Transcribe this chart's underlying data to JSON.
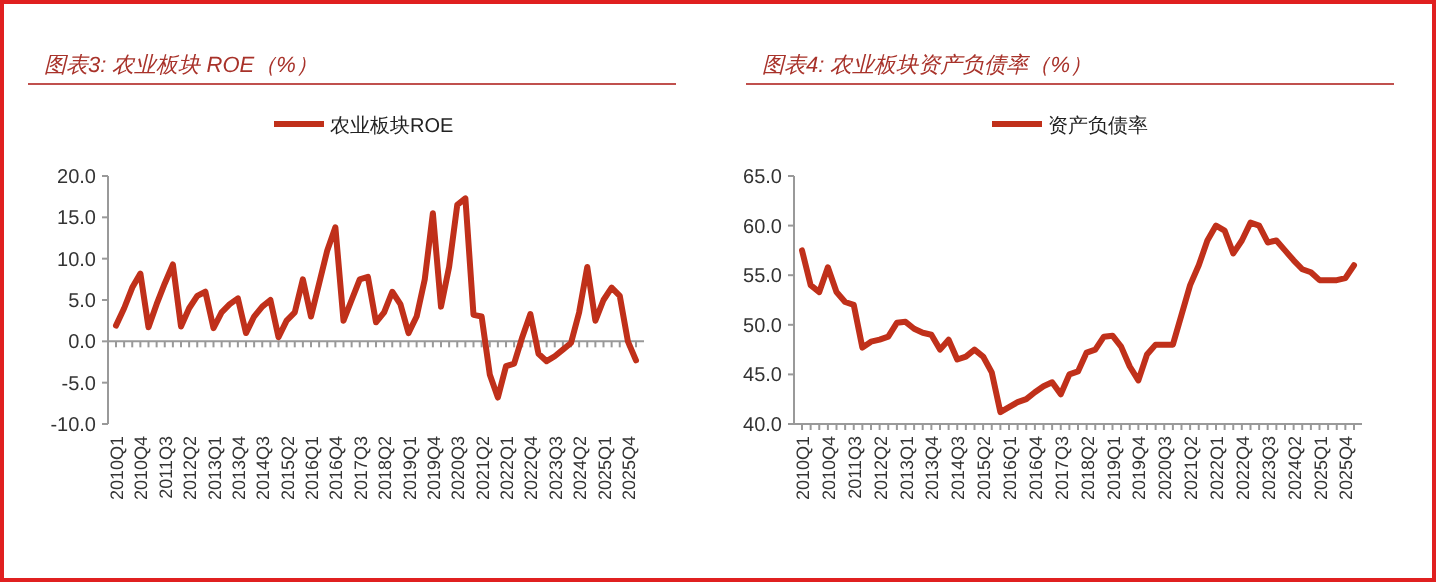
{
  "chart_data": [
    {
      "type": "line",
      "title": "图表3:  农业板块 ROE（%）",
      "legend": "top",
      "marker": "none",
      "line_style": "solid",
      "categories": [
        "2010Q1",
        null,
        null,
        "2010Q4",
        null,
        null,
        "2011Q3",
        null,
        null,
        "2012Q2",
        null,
        null,
        "2013Q1",
        null,
        null,
        "2013Q4",
        null,
        null,
        "2014Q3",
        null,
        null,
        "2015Q2",
        null,
        null,
        "2016Q1",
        null,
        null,
        "2016Q4",
        null,
        null,
        "2017Q3",
        null,
        null,
        "2018Q2",
        null,
        null,
        "2019Q1",
        null,
        null,
        "2019Q4",
        null,
        null,
        "2020Q3",
        null,
        null,
        "2021Q2",
        null,
        null,
        "2022Q1",
        null,
        null,
        "2022Q4",
        null,
        null,
        "2023Q3",
        null,
        null,
        "2024Q2",
        null,
        null,
        "2025Q1",
        null,
        null,
        "2025Q4",
        null
      ],
      "series": [
        {
          "name": "农业板块ROE",
          "color": "#c0301a",
          "values": [
            1.9,
            4,
            6.5,
            8.2,
            1.7,
            4.5,
            7,
            9.3,
            1.8,
            4,
            5.5,
            6,
            1.6,
            3.5,
            4.5,
            5.2,
            1,
            3,
            4.2,
            5,
            0.5,
            2.5,
            3.5,
            7.5,
            3,
            7,
            11,
            13.8,
            2.5,
            5,
            7.5,
            7.8,
            2.3,
            3.5,
            6,
            4.5,
            1,
            3,
            7.5,
            15.5,
            4.2,
            9,
            16.5,
            17.3,
            3.2,
            3,
            -4,
            -6.8,
            -3,
            -2.7,
            0.5,
            3.3,
            -1.5,
            -2.4,
            -1.8,
            -1,
            -0.2,
            3.5,
            9,
            2.5,
            5,
            6.5,
            5.5,
            0,
            -2.3
          ]
        }
      ],
      "ylim": [
        -10,
        20
      ],
      "yticks": [
        {
          "value": -10,
          "label": "-10.0"
        },
        {
          "value": -5,
          "label": "-5.0"
        },
        {
          "value": 0,
          "label": "0.0"
        },
        {
          "value": 5,
          "label": "5.0"
        },
        {
          "value": 10,
          "label": "10.0"
        },
        {
          "value": 15,
          "label": "15.0"
        },
        {
          "value": 20,
          "label": "20.0"
        }
      ]
    },
    {
      "type": "line",
      "title": "图表4:  农业板块资产负债率（%）",
      "legend": "top",
      "marker": "none",
      "line_style": "solid",
      "grid": false,
      "categories": [
        "2010Q1",
        null,
        null,
        "2010Q4",
        null,
        null,
        "2011Q3",
        null,
        null,
        "2012Q2",
        null,
        null,
        "2013Q1",
        null,
        null,
        "2013Q4",
        null,
        null,
        "2014Q3",
        null,
        null,
        "2015Q2",
        null,
        null,
        "2016Q1",
        null,
        null,
        "2016Q4",
        null,
        null,
        "2017Q3",
        null,
        null,
        "2018Q2",
        null,
        null,
        "2019Q1",
        null,
        null,
        "2019Q4",
        null,
        null,
        "2020Q3",
        null,
        null,
        "2021Q2",
        null,
        null,
        "2022Q1",
        null,
        null,
        "2022Q4",
        null,
        null,
        "2023Q3",
        null,
        null,
        "2024Q2",
        null,
        null,
        "2025Q1",
        null,
        null,
        "2025Q4",
        null
      ],
      "series": [
        {
          "name": "资产负债率",
          "color": "#c0301a",
          "values": [
            57.5,
            54,
            53.3,
            55.8,
            53.3,
            52.3,
            52,
            47.7,
            48.3,
            48.5,
            48.8,
            50.2,
            50.3,
            49.6,
            49.2,
            49,
            47.5,
            48.5,
            46.5,
            46.8,
            47.5,
            46.8,
            45.2,
            41.2,
            41.7,
            42.2,
            42.5,
            43.2,
            43.8,
            44.2,
            43,
            45,
            45.3,
            47.2,
            47.5,
            48.8,
            48.9,
            47.8,
            45.8,
            44.4,
            47,
            48,
            48,
            48,
            51,
            54,
            56,
            58.5,
            60,
            59.5,
            57.2,
            58.5,
            60.3,
            60,
            58.3,
            58.5,
            57.5,
            56.5,
            55.6,
            55.3,
            54.5,
            54.5,
            54.5,
            54.7,
            56
          ]
        }
      ],
      "ylim": [
        40,
        65
      ],
      "yticks": [
        {
          "value": 40,
          "label": "40.0"
        },
        {
          "value": 45,
          "label": "45.0"
        },
        {
          "value": 50,
          "label": "50.0"
        },
        {
          "value": 55,
          "label": "55.0"
        },
        {
          "value": 60,
          "label": "60.0"
        },
        {
          "value": 65,
          "label": "65.0"
        }
      ]
    }
  ]
}
